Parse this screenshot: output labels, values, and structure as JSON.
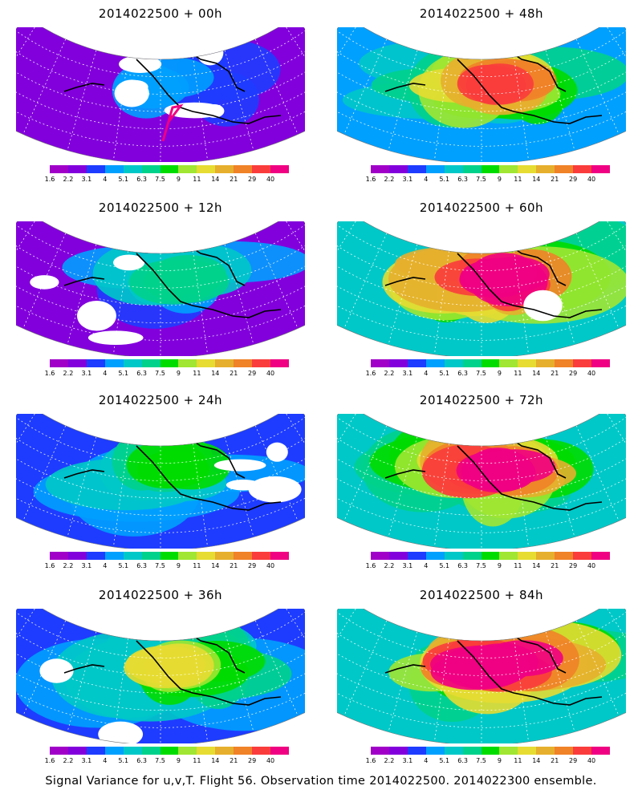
{
  "panels": [
    {
      "title": "2014022500 + 00h",
      "lead": "00h",
      "intensity": 0.25,
      "white_gaps": 0.34
    },
    {
      "title": "2014022500 + 48h",
      "lead": "48h",
      "intensity": 0.72,
      "white_gaps": 0.0
    },
    {
      "title": "2014022500 + 12h",
      "lead": "12h",
      "intensity": 0.38,
      "white_gaps": 0.22
    },
    {
      "title": "2014022500 + 60h",
      "lead": "60h",
      "intensity": 0.8,
      "white_gaps": 0.04
    },
    {
      "title": "2014022500 + 24h",
      "lead": "24h",
      "intensity": 0.45,
      "white_gaps": 0.18
    },
    {
      "title": "2014022500 + 72h",
      "lead": "72h",
      "intensity": 0.86,
      "white_gaps": 0.0
    },
    {
      "title": "2014022500 + 36h",
      "lead": "36h",
      "intensity": 0.55,
      "white_gaps": 0.08
    },
    {
      "title": "2014022500 + 84h",
      "lead": "84h",
      "intensity": 0.9,
      "white_gaps": 0.0
    }
  ],
  "colorbar": {
    "labels": [
      "1.6",
      "2.2",
      "3.1",
      "4",
      "5.1",
      "6.3",
      "7.5",
      "9",
      "11",
      "14",
      "21",
      "29",
      "40"
    ],
    "colors": [
      "#a000c8",
      "#8200dc",
      "#1e3cff",
      "#00a0ff",
      "#00c8c8",
      "#00d28c",
      "#00dc00",
      "#a0e632",
      "#e6dc32",
      "#e6af2d",
      "#f08228",
      "#fa3c3c",
      "#f00082"
    ]
  },
  "flight_track_color": "#f00082",
  "caption": "Signal Variance for u,v,T. Flight 56. Observation time 2014022500. 2014022300 ensemble."
}
